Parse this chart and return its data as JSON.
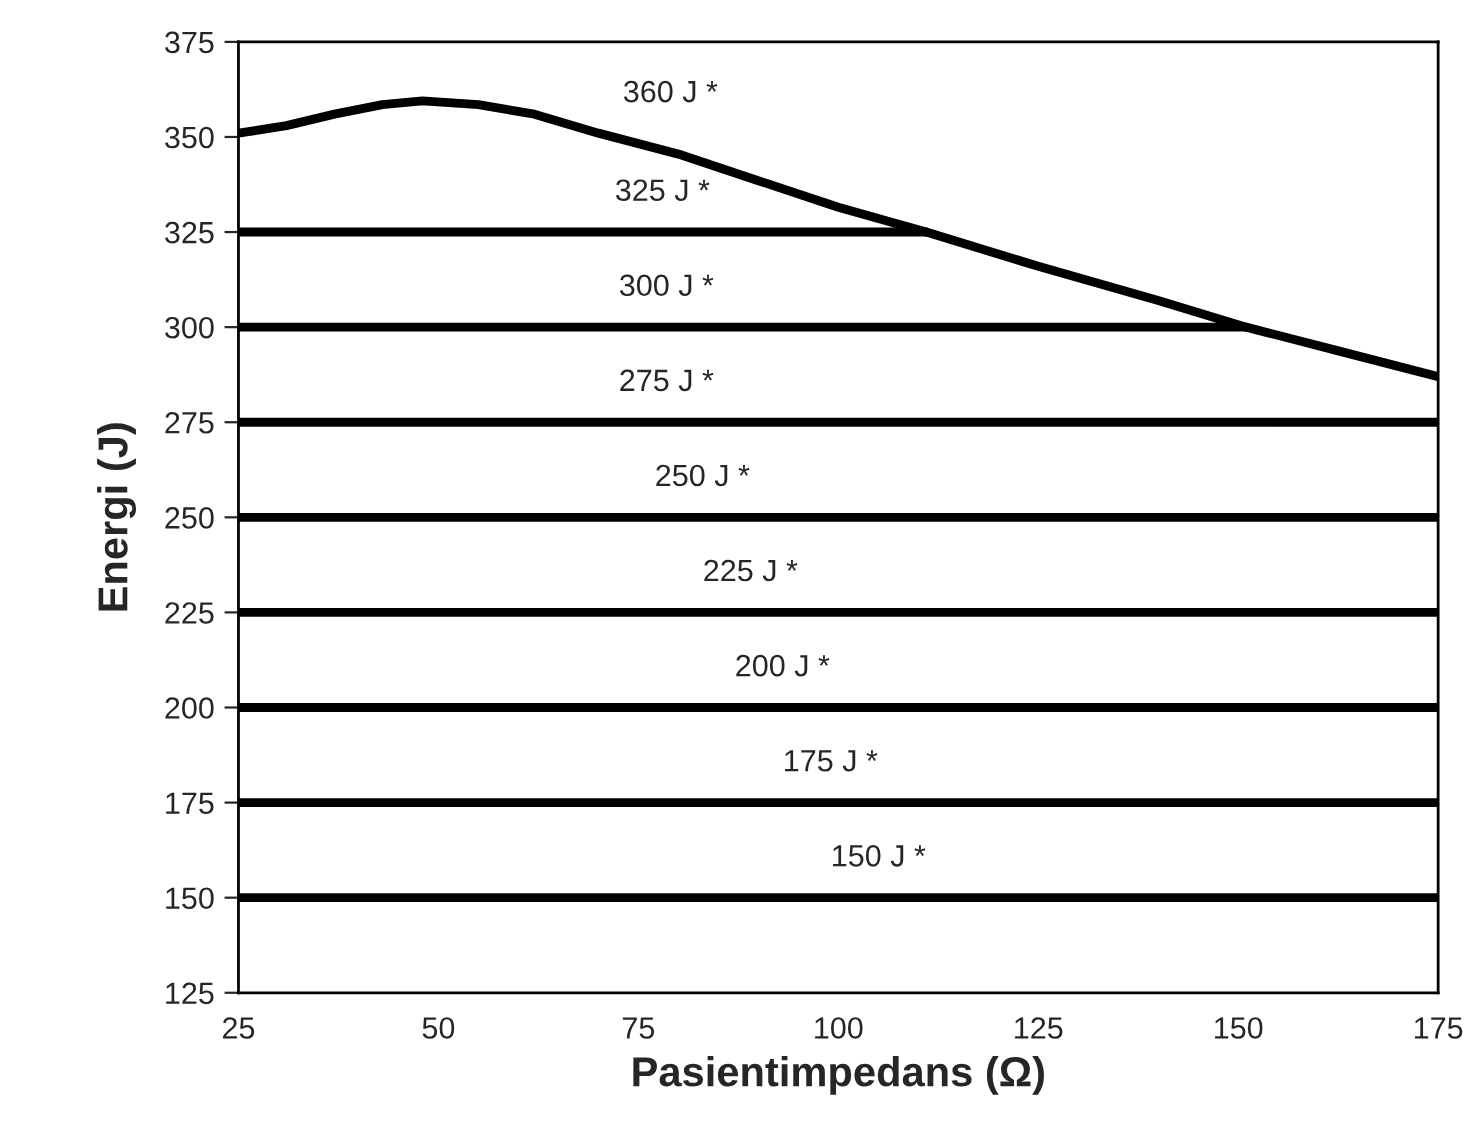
{
  "chart_data": {
    "type": "line",
    "xlabel": "Pasientimpedans (Ω)",
    "ylabel": "Energi (J)",
    "xlim": [
      25,
      175
    ],
    "xticks": [
      25,
      50,
      75,
      100,
      125,
      150,
      175
    ],
    "ylim": [
      125,
      375
    ],
    "yticks": [
      125,
      150,
      175,
      200,
      225,
      250,
      275,
      300,
      325,
      350,
      375
    ],
    "grid": false,
    "marker": "none",
    "line_style": "solid",
    "series": [
      {
        "color": "#000000",
        "x": [
          25,
          31,
          37,
          43,
          48,
          55,
          62,
          70,
          80,
          90,
          100,
          111,
          125,
          140,
          151,
          163,
          175
        ],
        "values": [
          351,
          353,
          356,
          358.5,
          359.5,
          358.5,
          356,
          351,
          345.5,
          338.5,
          331.5,
          325,
          316,
          307,
          300,
          293.5,
          287
        ]
      },
      {
        "color": "#000000",
        "x": [
          25,
          111
        ],
        "values": [
          325,
          325
        ]
      },
      {
        "color": "#000000",
        "x": [
          25,
          151
        ],
        "values": [
          300,
          300
        ]
      },
      {
        "color": "#000000",
        "x": [
          25,
          175
        ],
        "values": [
          275,
          275
        ]
      },
      {
        "color": "#000000",
        "x": [
          25,
          175
        ],
        "values": [
          250,
          250
        ]
      },
      {
        "color": "#000000",
        "x": [
          25,
          175
        ],
        "values": [
          225,
          225
        ]
      },
      {
        "color": "#000000",
        "x": [
          25,
          175
        ],
        "values": [
          200,
          200
        ]
      },
      {
        "color": "#000000",
        "x": [
          25,
          175
        ],
        "values": [
          175,
          175
        ]
      },
      {
        "color": "#000000",
        "x": [
          25,
          175
        ],
        "values": [
          150,
          150
        ]
      }
    ],
    "annotations": [
      "360 J *",
      {
        "text": "325 J *",
        "x": 78,
        "y": 325
      },
      {
        "text": "300 J *",
        "x": 78.5,
        "y": 300
      },
      {
        "text": "275 J *",
        "x": 78.5,
        "y": 275
      },
      {
        "text": "250 J *",
        "x": 83,
        "y": 250
      },
      {
        "text": "225 J *",
        "x": 89,
        "y": 225
      },
      {
        "text": "200 J *",
        "x": 93,
        "y": 200
      },
      {
        "text": "175 J *",
        "x": 99,
        "y": 175
      },
      {
        "text": "150 J *",
        "x": 105,
        "y": 150
      }
    ]
  }
}
